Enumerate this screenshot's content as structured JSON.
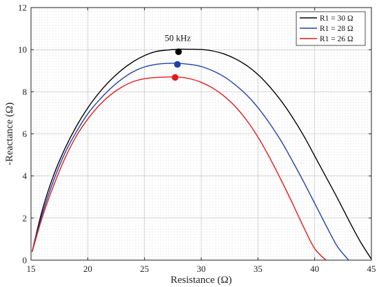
{
  "chart_data": {
    "type": "line",
    "xlabel": "Resistance (Ω)",
    "ylabel": "-Reactance (Ω)",
    "xlim": [
      15,
      45
    ],
    "ylim": [
      0,
      12
    ],
    "xticks": [
      "15",
      "20",
      "25",
      "30",
      "35",
      "40",
      "45"
    ],
    "yticks": [
      "0",
      "2",
      "4",
      "6",
      "8",
      "10",
      "12"
    ],
    "grid": true,
    "legend_position": "top-right",
    "series": [
      {
        "name": "R1 = 30 Ω",
        "color": "#000000",
        "x": [
          15.1,
          16,
          17,
          18,
          19,
          20,
          21,
          22,
          23,
          24,
          25,
          26,
          27,
          28,
          29,
          30,
          31,
          32,
          33,
          34,
          35,
          36,
          37,
          38,
          39,
          40,
          41,
          42,
          43,
          44,
          45
        ],
        "y": [
          0.4,
          2.39,
          4.04,
          5.31,
          6.36,
          7.23,
          7.95,
          8.55,
          9.04,
          9.43,
          9.72,
          9.91,
          9.98,
          10.02,
          10.02,
          10.01,
          9.94,
          9.8,
          9.57,
          9.25,
          8.82,
          8.26,
          7.6,
          6.82,
          5.94,
          4.95,
          3.95,
          2.95,
          1.9,
          0.9,
          0.05
        ],
        "marker": {
          "x": 28,
          "y": 9.9
        }
      },
      {
        "name": "R1 = 28 Ω",
        "color": "#1f3fa8",
        "x": [
          15.1,
          16,
          17,
          18,
          19,
          20,
          21,
          22,
          23,
          24,
          25,
          26,
          27,
          28,
          29,
          30,
          31,
          32,
          33,
          34,
          35,
          36,
          37,
          38,
          39,
          40,
          41,
          42,
          43
        ],
        "y": [
          0.4,
          2.2,
          3.8,
          5.1,
          6.1,
          6.95,
          7.6,
          8.15,
          8.6,
          8.95,
          9.18,
          9.3,
          9.35,
          9.35,
          9.3,
          9.2,
          9.0,
          8.72,
          8.33,
          7.85,
          7.25,
          6.52,
          5.7,
          4.75,
          3.75,
          2.7,
          1.65,
          0.65,
          0.0
        ],
        "marker": {
          "x": 27.9,
          "y": 9.3
        }
      },
      {
        "name": "R1 = 26 Ω",
        "color": "#e41a1c",
        "x": [
          15.1,
          16,
          17,
          18,
          19,
          20,
          21,
          22,
          23,
          24,
          25,
          26,
          27,
          28,
          29,
          30,
          31,
          32,
          33,
          34,
          35,
          36,
          37,
          38,
          39,
          40,
          41
        ],
        "y": [
          0.4,
          2.05,
          3.55,
          4.85,
          5.9,
          6.7,
          7.35,
          7.85,
          8.22,
          8.48,
          8.62,
          8.68,
          8.7,
          8.7,
          8.62,
          8.45,
          8.18,
          7.8,
          7.3,
          6.65,
          5.85,
          4.9,
          3.85,
          2.75,
          1.6,
          0.55,
          0.0
        ],
        "marker": {
          "x": 27.7,
          "y": 8.68
        }
      }
    ],
    "annotations": [
      {
        "text": "50 kHz",
        "x": 28,
        "y": 10.55
      }
    ]
  }
}
